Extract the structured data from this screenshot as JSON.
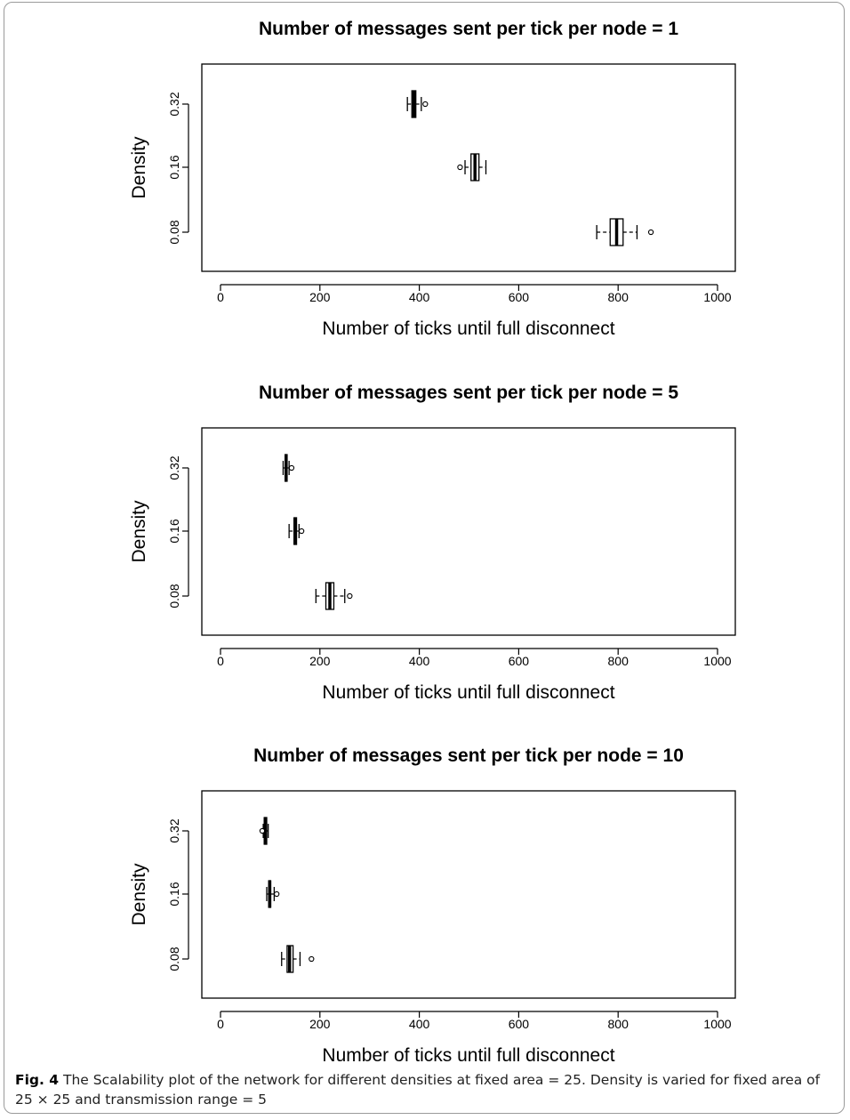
{
  "chart_data": [
    {
      "type": "boxplot",
      "title": "Number of messages sent per tick per node = 1",
      "xlabel": "Number of ticks until full disconnect",
      "ylabel": "Density",
      "xlim": [
        0,
        1000
      ],
      "xticks": [
        "0",
        "200",
        "400",
        "600",
        "800",
        "1000"
      ],
      "categories": [
        "0.08",
        "0.16",
        "0.32"
      ],
      "boxes": [
        {
          "category": "0.08",
          "whisker_low": 757,
          "q1": 784,
          "median": 797,
          "q3": 810,
          "whisker_high": 838,
          "outliers": [
            866
          ]
        },
        {
          "category": "0.16",
          "whisker_low": 492,
          "q1": 504,
          "median": 512,
          "q3": 520,
          "whisker_high": 534,
          "outliers": [
            482
          ]
        },
        {
          "category": "0.32",
          "whisker_low": 376,
          "q1": 385,
          "median": 389,
          "q3": 393,
          "whisker_high": 404,
          "outliers": [
            412
          ]
        }
      ]
    },
    {
      "type": "boxplot",
      "title": "Number of messages sent per tick per node = 5",
      "xlabel": "Number of ticks until full disconnect",
      "ylabel": "Density",
      "xlim": [
        0,
        1000
      ],
      "xticks": [
        "0",
        "200",
        "400",
        "600",
        "800",
        "1000"
      ],
      "categories": [
        "0.08",
        "0.16",
        "0.32"
      ],
      "boxes": [
        {
          "category": "0.08",
          "whisker_low": 192,
          "q1": 212,
          "median": 220,
          "q3": 228,
          "whisker_high": 250,
          "outliers": [
            260
          ]
        },
        {
          "category": "0.16",
          "whisker_low": 138,
          "q1": 148,
          "median": 150,
          "q3": 153,
          "whisker_high": 158,
          "outliers": [
            163
          ]
        },
        {
          "category": "0.32",
          "whisker_low": 126,
          "q1": 130,
          "median": 132,
          "q3": 134,
          "whisker_high": 138,
          "outliers": [
            143
          ]
        }
      ]
    },
    {
      "type": "boxplot",
      "title": "Number of messages sent per tick per node = 10",
      "xlabel": "Number of ticks until full disconnect",
      "ylabel": "Density",
      "xlim": [
        0,
        1000
      ],
      "xticks": [
        "0",
        "200",
        "400",
        "600",
        "800",
        "1000"
      ],
      "categories": [
        "0.08",
        "0.16",
        "0.32"
      ],
      "boxes": [
        {
          "category": "0.08",
          "whisker_low": 123,
          "q1": 134,
          "median": 139,
          "q3": 146,
          "whisker_high": 160,
          "outliers": [
            183
          ]
        },
        {
          "category": "0.16",
          "whisker_low": 93,
          "q1": 97,
          "median": 99,
          "q3": 101,
          "whisker_high": 108,
          "outliers": [
            113
          ]
        },
        {
          "category": "0.32",
          "whisker_low": 86,
          "q1": 88,
          "median": 90,
          "q3": 93,
          "whisker_high": 96,
          "outliers": [
            84
          ]
        }
      ]
    }
  ],
  "caption": {
    "label": "Fig. 4",
    "text": "The Scalability plot of the network for different densities at fixed area = 25. Density is varied for fixed area of 25 × 25 and transmission range = 5"
  }
}
